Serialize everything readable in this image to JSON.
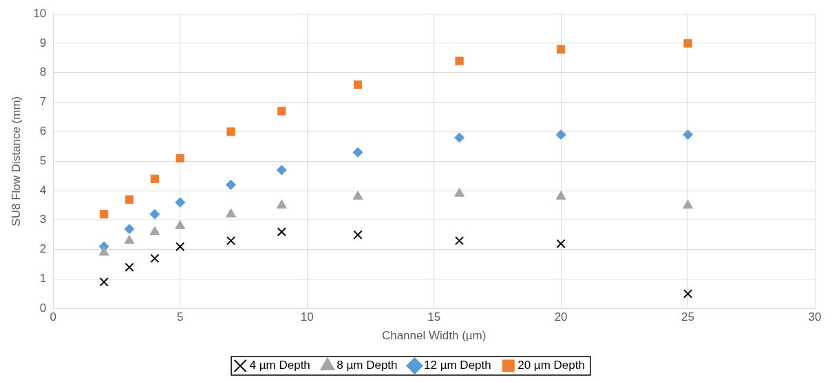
{
  "chart_data": {
    "type": "scatter",
    "xlabel": "Channel Width (µm)",
    "ylabel": "SU8 Flow Distance (mm)",
    "x": [
      2,
      3,
      4,
      5,
      7,
      9,
      12,
      16,
      20,
      25
    ],
    "series": [
      {
        "name": "4 µm Depth",
        "color": "#000000",
        "marker": "cross",
        "values": [
          0.9,
          1.4,
          1.7,
          2.1,
          2.3,
          2.6,
          2.5,
          2.3,
          2.2,
          0.5
        ]
      },
      {
        "name": "8 µm Depth",
        "color": "#a5a5a5",
        "marker": "triangle",
        "values": [
          1.9,
          2.3,
          2.6,
          2.8,
          3.2,
          3.5,
          3.8,
          3.9,
          3.8,
          3.5
        ]
      },
      {
        "name": "12 µm Depth",
        "color": "#5b9bd5",
        "marker": "diamond",
        "values": [
          2.1,
          2.7,
          3.2,
          3.6,
          4.2,
          4.7,
          5.3,
          5.8,
          5.9,
          5.9
        ]
      },
      {
        "name": "20 µm Depth",
        "color": "#ed7d31",
        "marker": "square",
        "values": [
          3.2,
          3.7,
          4.4,
          5.1,
          6.0,
          6.7,
          7.6,
          8.4,
          8.8,
          9.0
        ]
      }
    ],
    "xlim": [
      0,
      30
    ],
    "xticks": [
      0,
      5,
      10,
      15,
      20,
      25,
      30
    ],
    "ylim": [
      0,
      10
    ],
    "yticks": [
      0,
      1,
      2,
      3,
      4,
      5,
      6,
      7,
      8,
      9,
      10
    ],
    "grid": true,
    "legend": "bottom"
  }
}
